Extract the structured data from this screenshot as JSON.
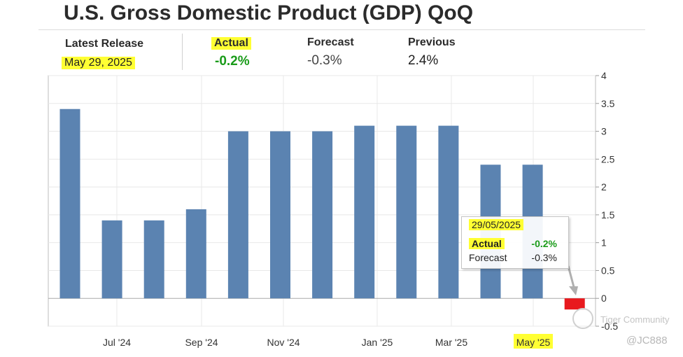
{
  "header": {
    "title": "U.S. Gross Domestic Product (GDP) QoQ",
    "latest_release_label": "Latest Release",
    "latest_release_date": "May 29, 2025",
    "actual_label": "Actual",
    "actual_value": "-0.2%",
    "forecast_label": "Forecast",
    "forecast_value": "-0.3%",
    "previous_label": "Previous",
    "previous_value": "2.4%"
  },
  "tooltip": {
    "date": "29/05/2025",
    "actual_label": "Actual",
    "actual_value": "-0.2%",
    "forecast_label": "Forecast",
    "forecast_value": "-0.3%"
  },
  "colors": {
    "bar": "#5b83b1",
    "negative_bar": "#e8191e",
    "actual_green": "#1a9b1a",
    "highlight": "#ffff33",
    "grid": "#e8e8e8"
  },
  "watermark": {
    "community": "Tiger Community",
    "handle": "@JC888"
  },
  "chart_data": {
    "type": "bar",
    "title": "U.S. Gross Domestic Product (GDP) QoQ",
    "xlabel": "",
    "ylabel": "",
    "ylim": [
      -0.5,
      4
    ],
    "yticks": [
      -0.5,
      0,
      0.5,
      1,
      1.5,
      2,
      2.5,
      3,
      3.5,
      4
    ],
    "y_axis_side": "right",
    "grid": true,
    "legend": "none",
    "x_tick_labels": [
      "Jul '24",
      "Sep '24",
      "Nov '24",
      "Jan '25",
      "Mar '25",
      "May '25"
    ],
    "values": [
      3.4,
      1.4,
      1.4,
      1.6,
      3.0,
      3.0,
      3.0,
      3.1,
      3.1,
      3.1,
      2.4,
      2.4,
      -0.2
    ],
    "highlighted_point": {
      "date": "29/05/2025",
      "actual": -0.2,
      "forecast": -0.3
    }
  }
}
